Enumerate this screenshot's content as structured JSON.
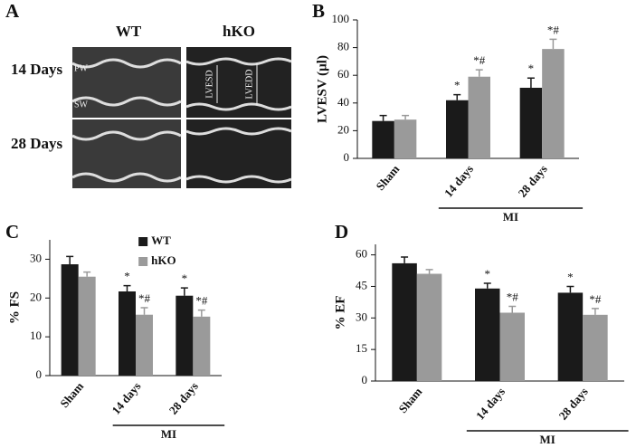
{
  "image_panel": {
    "label": "A",
    "columns": [
      "WT",
      "hKO"
    ],
    "rows": [
      "14 Days",
      "28 Days"
    ],
    "annotations": [
      "PW",
      "SW",
      "LVESD",
      "LVEDD"
    ]
  },
  "chart_data": [
    {
      "type": "bar",
      "panel_label": "B",
      "ylabel": "LVESV (µl)",
      "categories": [
        "Sham",
        "14 days",
        "28 days"
      ],
      "group_label": "MI",
      "ylim": [
        0,
        100
      ],
      "yticks": [
        0,
        20,
        40,
        60,
        80,
        100
      ],
      "series": [
        {
          "name": "WT",
          "color": "#1a1a1a",
          "values": [
            27,
            42,
            51
          ],
          "errors": [
            4,
            4,
            7
          ],
          "annotations": [
            null,
            "*",
            "*"
          ]
        },
        {
          "name": "hKO",
          "color": "#9a9a9a",
          "values": [
            28,
            59,
            79
          ],
          "errors": [
            3,
            5,
            7
          ],
          "annotations": [
            null,
            "*#",
            "*#"
          ]
        }
      ]
    },
    {
      "type": "bar",
      "panel_label": "C",
      "ylabel": "% FS",
      "categories": [
        "Sham",
        "14 days",
        "28 days"
      ],
      "group_label": "MI",
      "ylim": [
        0,
        35
      ],
      "yticks": [
        0,
        10,
        20,
        30
      ],
      "legend": "top",
      "series": [
        {
          "name": "WT",
          "color": "#1a1a1a",
          "values": [
            28.7,
            21.7,
            20.6
          ],
          "errors": [
            2,
            1.5,
            2
          ],
          "annotations": [
            null,
            "*",
            "*"
          ]
        },
        {
          "name": "hKO",
          "color": "#9a9a9a",
          "values": [
            25.5,
            15.7,
            15.2
          ],
          "errors": [
            1.2,
            1.8,
            1.7
          ],
          "annotations": [
            null,
            "*#",
            "*#"
          ]
        }
      ]
    },
    {
      "type": "bar",
      "panel_label": "D",
      "ylabel": "% EF",
      "categories": [
        "Sham",
        "14 days",
        "28 days"
      ],
      "group_label": "MI",
      "ylim": [
        0,
        65
      ],
      "yticks": [
        0,
        15,
        30,
        45,
        60
      ],
      "series": [
        {
          "name": "WT",
          "color": "#1a1a1a",
          "values": [
            56,
            44,
            42
          ],
          "errors": [
            3,
            2.5,
            3
          ],
          "annotations": [
            null,
            "*",
            "*"
          ]
        },
        {
          "name": "hKO",
          "color": "#9a9a9a",
          "values": [
            51,
            32.5,
            31.5
          ],
          "errors": [
            2,
            3,
            3
          ],
          "annotations": [
            null,
            "*#",
            "*#"
          ]
        }
      ]
    }
  ]
}
